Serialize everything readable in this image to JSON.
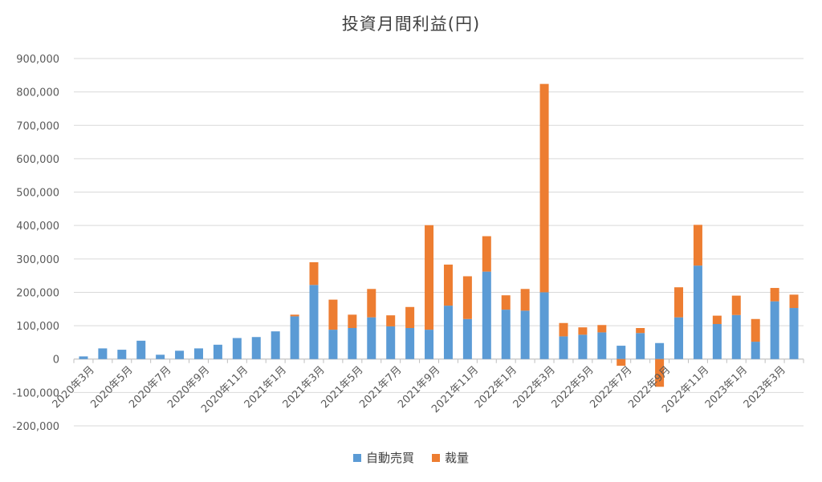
{
  "chart_data": {
    "type": "bar",
    "stacked": true,
    "title": "投資月間利益(円)",
    "xlabel": "",
    "ylabel": "",
    "ylim": [
      -200000,
      900000
    ],
    "yticks": [
      -200000,
      -100000,
      0,
      100000,
      200000,
      300000,
      400000,
      500000,
      600000,
      700000,
      800000,
      900000
    ],
    "ytick_labels": [
      "-200,000",
      "-100,000",
      "0",
      "100,000",
      "200,000",
      "300,000",
      "400,000",
      "500,000",
      "600,000",
      "700,000",
      "800,000",
      "900,000"
    ],
    "grid": true,
    "legend_position": "bottom",
    "categories": [
      "2020年3月",
      "2020年4月",
      "2020年5月",
      "2020年6月",
      "2020年7月",
      "2020年8月",
      "2020年9月",
      "2020年10月",
      "2020年11月",
      "2020年12月",
      "2021年1月",
      "2021年2月",
      "2021年3月",
      "2021年4月",
      "2021年5月",
      "2021年6月",
      "2021年7月",
      "2021年8月",
      "2021年9月",
      "2021年10月",
      "2021年11月",
      "2021年12月",
      "2022年1月",
      "2022年2月",
      "2022年3月",
      "2022年4月",
      "2022年5月",
      "2022年6月",
      "2022年7月",
      "2022年8月",
      "2022年9月",
      "2022年10月",
      "2022年11月",
      "2022年12月",
      "2023年1月",
      "2023年2月",
      "2023年3月",
      "2023年4月"
    ],
    "xtick_labels": [
      "2020年3月",
      "",
      "2020年5月",
      "",
      "2020年7月",
      "",
      "2020年9月",
      "",
      "2020年11月",
      "",
      "2021年1月",
      "",
      "2021年3月",
      "",
      "2021年5月",
      "",
      "2021年7月",
      "",
      "2021年9月",
      "",
      "2021年11月",
      "",
      "2022年1月",
      "",
      "2022年3月",
      "",
      "2022年5月",
      "",
      "2022年7月",
      "",
      "2022年9月",
      "",
      "2022年11月",
      "",
      "2023年1月",
      "",
      "2023年3月",
      ""
    ],
    "series": [
      {
        "name": "自動売買",
        "color": "#5B9BD5",
        "values": [
          8000,
          32000,
          28000,
          55000,
          13000,
          25000,
          32000,
          43000,
          63000,
          66000,
          83000,
          128000,
          222000,
          88000,
          93000,
          125000,
          98000,
          93000,
          88000,
          160000,
          120000,
          262000,
          148000,
          145000,
          200000,
          68000,
          73000,
          80000,
          40000,
          78000,
          48000,
          125000,
          280000,
          105000,
          132000,
          52000,
          173000,
          153000
        ]
      },
      {
        "name": "裁量",
        "color": "#ED7D31",
        "values": [
          0,
          0,
          0,
          0,
          0,
          0,
          0,
          0,
          0,
          0,
          0,
          5000,
          68000,
          90000,
          40000,
          85000,
          33000,
          63000,
          313000,
          123000,
          128000,
          106000,
          43000,
          65000,
          624000,
          40000,
          22000,
          22000,
          -20000,
          15000,
          -83000,
          90000,
          122000,
          25000,
          58000,
          68000,
          40000,
          40000
        ]
      }
    ]
  }
}
